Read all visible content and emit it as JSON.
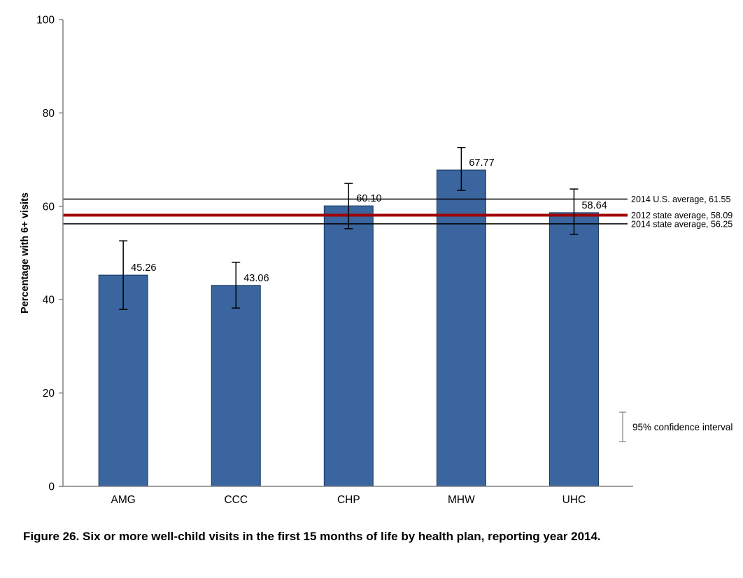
{
  "chart_data": {
    "type": "bar",
    "caption": "Figure 26. Six or more well-child visits in the first 15 months of life by health plan, reporting year 2014.",
    "ylabel": "Percentage with 6+ visits",
    "xlabel": "",
    "ylim": [
      0,
      100
    ],
    "yticks": [
      0,
      20,
      40,
      60,
      80,
      100
    ],
    "grid": false,
    "categories": [
      "AMG",
      "CCC",
      "CHP",
      "MHW",
      "UHC"
    ],
    "values": [
      45.26,
      43.06,
      60.1,
      67.77,
      58.64
    ],
    "value_labels": [
      "45.26",
      "43.06",
      "60.10",
      "67.77",
      "58.64"
    ],
    "ci_low": [
      37.9,
      38.2,
      55.2,
      63.4,
      54.0
    ],
    "ci_high": [
      52.6,
      48.0,
      64.9,
      72.6,
      63.7
    ],
    "reference_lines": [
      {
        "label": "2014 U.S. average, 61.55",
        "value": 61.55,
        "color": "#000000",
        "width": 1.5
      },
      {
        "label": "2012 state average, 58.09",
        "value": 58.09,
        "color": "#A00000",
        "width": 4
      },
      {
        "label": "2014 state average, 56.25",
        "value": 56.25,
        "color": "#000000",
        "width": 1.5
      }
    ],
    "legend": {
      "label": "95% confidence interval",
      "position": "right"
    },
    "colors": {
      "bar_fill": "#3A659E",
      "bar_border": "#17375E",
      "axis": "#808080",
      "error_bar": "#000000",
      "legend_glyph": "#808080",
      "text": "#000000"
    }
  }
}
